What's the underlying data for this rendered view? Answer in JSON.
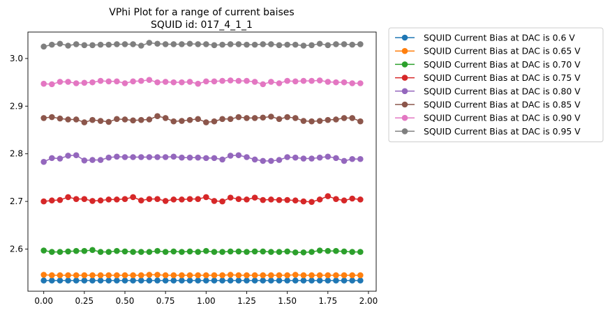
{
  "chart_data": {
    "type": "line",
    "title": "VPhi Plot for a range of current baises",
    "subtitle": "SQUID id: 017_4_1_1",
    "xlabel": "",
    "ylabel": "",
    "xlim": [
      -0.0975,
      2.0475
    ],
    "ylim": [
      2.5115,
      3.0555
    ],
    "x_ticks": [
      "0.00",
      "0.25",
      "0.50",
      "0.75",
      "1.00",
      "1.25",
      "1.50",
      "1.75",
      "2.00"
    ],
    "y_ticks": [
      "2.6",
      "2.7",
      "2.8",
      "2.9",
      "3.0"
    ],
    "grid": false,
    "legend_position": "outside-top-right",
    "marker": "circle",
    "x": [
      0.0,
      0.05,
      0.1,
      0.15,
      0.2,
      0.25,
      0.3,
      0.35,
      0.4,
      0.45,
      0.5,
      0.55,
      0.6,
      0.65,
      0.7,
      0.75,
      0.8,
      0.85,
      0.9,
      0.95,
      1.0,
      1.05,
      1.1,
      1.15,
      1.2,
      1.25,
      1.3,
      1.35,
      1.4,
      1.45,
      1.5,
      1.55,
      1.6,
      1.65,
      1.7,
      1.75,
      1.8,
      1.85,
      1.9,
      1.95
    ],
    "series": [
      {
        "name": "SQUID Current Bias at DAC is 0.6  V",
        "color": "#1f77b4",
        "values": [
          2.534,
          2.534,
          2.534,
          2.534,
          2.534,
          2.534,
          2.534,
          2.534,
          2.534,
          2.534,
          2.534,
          2.534,
          2.534,
          2.534,
          2.534,
          2.534,
          2.534,
          2.534,
          2.534,
          2.534,
          2.534,
          2.534,
          2.534,
          2.534,
          2.534,
          2.534,
          2.534,
          2.534,
          2.534,
          2.534,
          2.534,
          2.534,
          2.534,
          2.534,
          2.534,
          2.534,
          2.534,
          2.534,
          2.534,
          2.534
        ]
      },
      {
        "name": "SQUID Current Bias at DAC is 0.65 V",
        "color": "#ff7f0e",
        "values": [
          2.546,
          2.545,
          2.545,
          2.545,
          2.545,
          2.545,
          2.545,
          2.545,
          2.545,
          2.545,
          2.545,
          2.545,
          2.545,
          2.546,
          2.546,
          2.545,
          2.545,
          2.545,
          2.545,
          2.545,
          2.545,
          2.545,
          2.545,
          2.546,
          2.545,
          2.545,
          2.545,
          2.545,
          2.545,
          2.545,
          2.545,
          2.546,
          2.545,
          2.545,
          2.545,
          2.545,
          2.545,
          2.545,
          2.545,
          2.545
        ]
      },
      {
        "name": "SQUID Current Bias at DAC is 0.70 V",
        "color": "#2ca02c",
        "values": [
          2.597,
          2.594,
          2.594,
          2.595,
          2.596,
          2.596,
          2.598,
          2.594,
          2.594,
          2.596,
          2.595,
          2.594,
          2.594,
          2.594,
          2.596,
          2.594,
          2.595,
          2.594,
          2.595,
          2.594,
          2.596,
          2.594,
          2.594,
          2.595,
          2.595,
          2.594,
          2.595,
          2.595,
          2.594,
          2.594,
          2.595,
          2.593,
          2.593,
          2.594,
          2.597,
          2.596,
          2.596,
          2.595,
          2.594,
          2.594
        ]
      },
      {
        "name": "SQUID Current Bias at DAC is 0.75 V",
        "color": "#d62728",
        "values": [
          2.7,
          2.702,
          2.703,
          2.709,
          2.705,
          2.705,
          2.701,
          2.702,
          2.704,
          2.704,
          2.705,
          2.709,
          2.702,
          2.705,
          2.705,
          2.701,
          2.704,
          2.704,
          2.705,
          2.705,
          2.709,
          2.701,
          2.7,
          2.708,
          2.705,
          2.704,
          2.708,
          2.703,
          2.704,
          2.703,
          2.703,
          2.702,
          2.7,
          2.699,
          2.704,
          2.711,
          2.705,
          2.702,
          2.706,
          2.704
        ]
      },
      {
        "name": "SQUID Current Bias at DAC is 0.80 V",
        "color": "#9467bd",
        "values": [
          2.783,
          2.791,
          2.79,
          2.796,
          2.797,
          2.786,
          2.787,
          2.787,
          2.792,
          2.794,
          2.793,
          2.793,
          2.793,
          2.793,
          2.793,
          2.793,
          2.794,
          2.792,
          2.792,
          2.792,
          2.791,
          2.791,
          2.788,
          2.796,
          2.797,
          2.793,
          2.788,
          2.785,
          2.785,
          2.787,
          2.793,
          2.792,
          2.79,
          2.79,
          2.792,
          2.794,
          2.791,
          2.785,
          2.789,
          2.789
        ]
      },
      {
        "name": "SQUID Current Bias at DAC is 0.85 V",
        "color": "#8c564b",
        "values": [
          2.875,
          2.877,
          2.874,
          2.872,
          2.872,
          2.866,
          2.871,
          2.869,
          2.867,
          2.873,
          2.872,
          2.87,
          2.871,
          2.872,
          2.879,
          2.875,
          2.868,
          2.869,
          2.871,
          2.873,
          2.866,
          2.868,
          2.873,
          2.873,
          2.877,
          2.875,
          2.875,
          2.876,
          2.878,
          2.873,
          2.877,
          2.875,
          2.869,
          2.868,
          2.869,
          2.871,
          2.872,
          2.875,
          2.875,
          2.868
        ]
      },
      {
        "name": "SQUID Current Bias at DAC is 0.90 V",
        "color": "#e377c2",
        "values": [
          2.947,
          2.946,
          2.951,
          2.951,
          2.948,
          2.949,
          2.95,
          2.953,
          2.952,
          2.952,
          2.948,
          2.952,
          2.953,
          2.955,
          2.95,
          2.951,
          2.95,
          2.95,
          2.951,
          2.947,
          2.952,
          2.952,
          2.953,
          2.954,
          2.953,
          2.953,
          2.951,
          2.946,
          2.951,
          2.948,
          2.953,
          2.952,
          2.953,
          2.953,
          2.954,
          2.951,
          2.95,
          2.95,
          2.948,
          2.948
        ]
      },
      {
        "name": "SQUID Current Bias at DAC is 0.95 V",
        "color": "#7f7f7f",
        "values": [
          3.025,
          3.029,
          3.031,
          3.027,
          3.03,
          3.028,
          3.028,
          3.029,
          3.029,
          3.03,
          3.03,
          3.03,
          3.027,
          3.033,
          3.031,
          3.03,
          3.03,
          3.03,
          3.031,
          3.03,
          3.03,
          3.028,
          3.029,
          3.03,
          3.03,
          3.029,
          3.029,
          3.03,
          3.03,
          3.028,
          3.029,
          3.029,
          3.027,
          3.028,
          3.031,
          3.028,
          3.03,
          3.03,
          3.029,
          3.03
        ]
      }
    ]
  }
}
